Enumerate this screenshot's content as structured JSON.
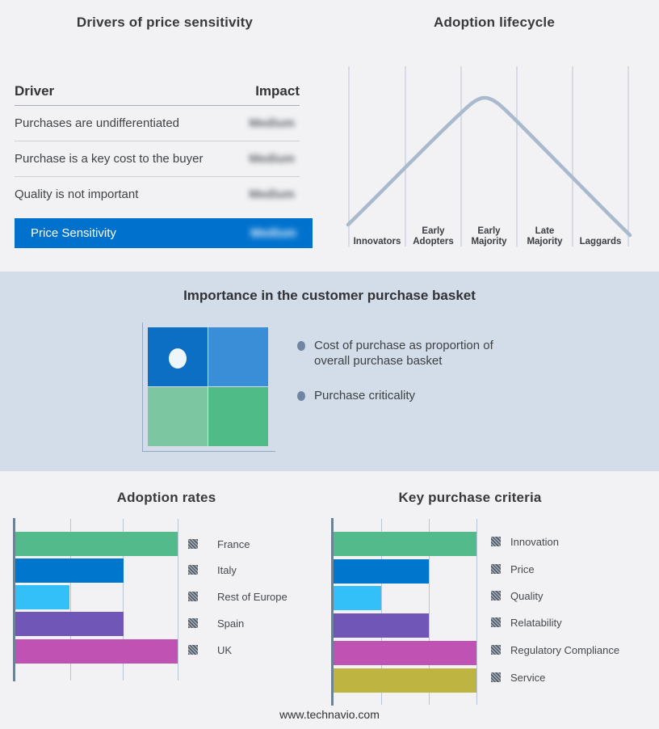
{
  "footer": {
    "text": "www.technavio.com"
  },
  "chart_data": [
    {
      "type": "table",
      "title": "Drivers of price sensitivity",
      "columns": {
        "driver": "Driver",
        "impact": "Impact"
      },
      "rows": [
        {
          "driver": "Purchases are undifferentiated",
          "impact": "Medium"
        },
        {
          "driver": "Purchase is a key cost to the buyer",
          "impact": "Medium"
        },
        {
          "driver": "Quality is not important",
          "impact": "Medium"
        }
      ],
      "summary_row": {
        "label": "Price Sensitivity",
        "impact": "Medium"
      },
      "accent_color": "#0072ce",
      "impact_values_blurred": true
    },
    {
      "type": "line",
      "title": "Adoption lifecycle",
      "categories": [
        "Innovators",
        "Early Adopters",
        "Early Majority",
        "Late Majority",
        "Laggards"
      ],
      "peak_category": "Early Majority",
      "curve_shape": "bell",
      "curve_color": "#a9bace",
      "grid": true,
      "yaxis": "none"
    },
    {
      "type": "heatmap",
      "title": "Importance in the customer purchase basket",
      "quadrant_colors": [
        [
          "#0c6fc3",
          "#3a8ed8"
        ],
        [
          "#7dc6a2",
          "#4fbb87"
        ]
      ],
      "marker": {
        "row": 0,
        "col": 0,
        "color": "#eef6fc"
      },
      "bullets": [
        "Cost of purchase as proportion of overall purchase basket",
        "Purchase criticality"
      ]
    },
    {
      "type": "bar",
      "title": "Adoption rates",
      "orientation": "horizontal",
      "categories": [
        "France",
        "Italy",
        "Rest of Europe",
        "Spain",
        "UK"
      ],
      "values": [
        3,
        2,
        1,
        2,
        3
      ],
      "xlim": [
        0,
        3
      ],
      "xticklabels": "none",
      "colors": [
        "#53ba8b",
        "#0077cd",
        "#33bff7",
        "#7056b6",
        "#c052b4"
      ],
      "grid": true,
      "legend_position": "right",
      "legend_swatches": "hatched"
    },
    {
      "type": "bar",
      "title": "Key purchase criteria",
      "orientation": "horizontal",
      "categories": [
        "Innovation",
        "Price",
        "Quality",
        "Relatability",
        "Regulatory Compliance",
        "Service"
      ],
      "values": [
        3,
        2,
        1,
        2,
        3,
        3
      ],
      "xlim": [
        0,
        3
      ],
      "xticklabels": "none",
      "colors": [
        "#53ba8b",
        "#0077cd",
        "#33bff7",
        "#7056b6",
        "#c052b4",
        "#bdb442"
      ],
      "grid": true,
      "legend_position": "right",
      "legend_swatches": "hatched"
    }
  ]
}
